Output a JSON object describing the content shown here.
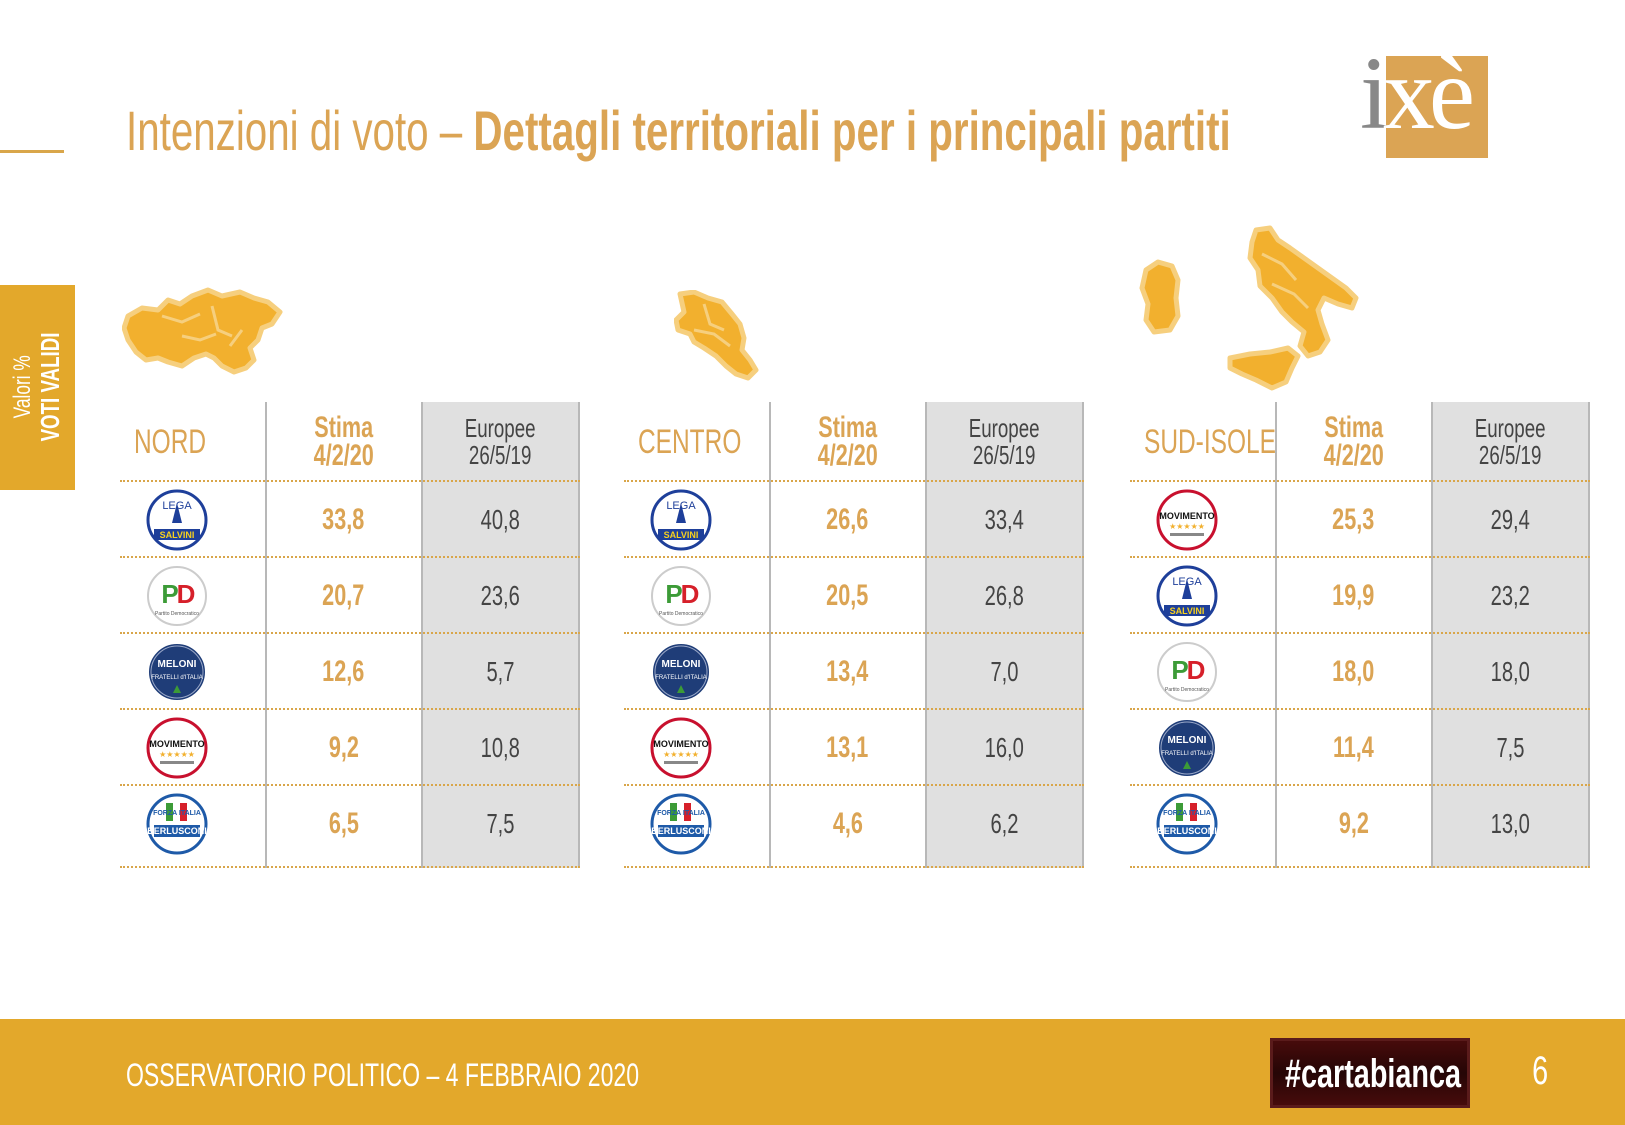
{
  "header": {
    "title_light": "Intenzioni di voto – ",
    "title_bold": "Dettagli territoriali per i principali partiti",
    "logo_text": "ixè"
  },
  "side_tab": {
    "line1": "Valori %",
    "line2": "VOTI VALIDI"
  },
  "regions": [
    {
      "name": "NORD",
      "col_stima": [
        "Stima",
        "4/2/20"
      ],
      "col_europee": [
        "Europee",
        "26/5/19"
      ],
      "rows": [
        {
          "party": "lega",
          "stima": "33,8",
          "europee": "40,8"
        },
        {
          "party": "pd",
          "stima": "20,7",
          "europee": "23,6"
        },
        {
          "party": "fdi",
          "stima": "12,6",
          "europee": "5,7"
        },
        {
          "party": "m5s",
          "stima": "9,2",
          "europee": "10,8"
        },
        {
          "party": "fi",
          "stima": "6,5",
          "europee": "7,5"
        }
      ]
    },
    {
      "name": "CENTRO",
      "col_stima": [
        "Stima",
        "4/2/20"
      ],
      "col_europee": [
        "Europee",
        "26/5/19"
      ],
      "rows": [
        {
          "party": "lega",
          "stima": "26,6",
          "europee": "33,4"
        },
        {
          "party": "pd",
          "stima": "20,5",
          "europee": "26,8"
        },
        {
          "party": "fdi",
          "stima": "13,4",
          "europee": "7,0"
        },
        {
          "party": "m5s",
          "stima": "13,1",
          "europee": "16,0"
        },
        {
          "party": "fi",
          "stima": "4,6",
          "europee": "6,2"
        }
      ]
    },
    {
      "name": "SUD-ISOLE",
      "col_stima": [
        "Stima",
        "4/2/20"
      ],
      "col_europee": [
        "Europee",
        "26/5/19"
      ],
      "rows": [
        {
          "party": "m5s",
          "stima": "25,3",
          "europee": "29,4"
        },
        {
          "party": "lega",
          "stima": "19,9",
          "europee": "23,2"
        },
        {
          "party": "pd",
          "stima": "18,0",
          "europee": "18,0"
        },
        {
          "party": "fdi",
          "stima": "11,4",
          "europee": "7,5"
        },
        {
          "party": "fi",
          "stima": "9,2",
          "europee": "13,0"
        }
      ]
    }
  ],
  "parties": {
    "lega": {
      "icon": "lega-salvini-logo-icon",
      "top": "LEGA",
      "bottom": "SALVINI"
    },
    "pd": {
      "icon": "partito-democratico-logo-icon",
      "top": "PD",
      "bottom": "Partito Democratico"
    },
    "fdi": {
      "icon": "fratelli-italia-logo-icon",
      "top": "MELONI",
      "bottom": "FRATELLI d'ITALIA"
    },
    "m5s": {
      "icon": "movimento-5-stelle-logo-icon",
      "top": "MOVIMENTO",
      "bottom": "★★★★★"
    },
    "fi": {
      "icon": "forza-italia-logo-icon",
      "top": "FORZA ITALIA",
      "bottom": "BERLUSCONI"
    }
  },
  "footer": {
    "text": "OSSERVATORIO POLITICO – 4 FEBBRAIO 2020",
    "hashtag": "#cartabianca",
    "page": "6"
  },
  "colors": {
    "accent": "#dba454",
    "footer_bg": "#e3a82b",
    "map_fill": "#f2b02e",
    "gray_col": "#e0e0e0"
  }
}
